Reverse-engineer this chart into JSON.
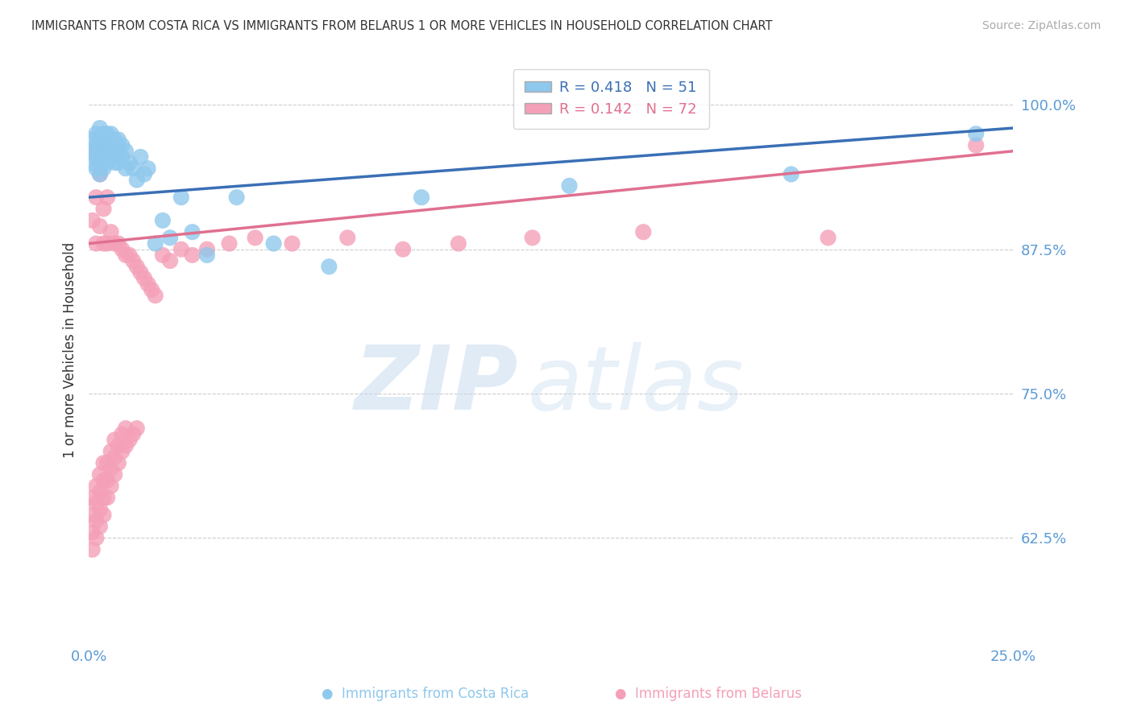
{
  "title": "IMMIGRANTS FROM COSTA RICA VS IMMIGRANTS FROM BELARUS 1 OR MORE VEHICLES IN HOUSEHOLD CORRELATION CHART",
  "source": "Source: ZipAtlas.com",
  "ylabel": "1 or more Vehicles in Household",
  "xlim": [
    0.0,
    0.25
  ],
  "ylim": [
    0.535,
    1.04
  ],
  "yticks": [
    0.625,
    0.75,
    0.875,
    1.0
  ],
  "ytick_labels": [
    "62.5%",
    "75.0%",
    "87.5%",
    "100.0%"
  ],
  "xticks": [
    0.0,
    0.05,
    0.1,
    0.15,
    0.2,
    0.25
  ],
  "xtick_labels": [
    "0.0%",
    "",
    "",
    "",
    "",
    "25.0%"
  ],
  "costa_rica_color": "#8FC8ED",
  "belarus_color": "#F4A0B8",
  "costa_rica_line_color": "#3A6FB5",
  "belarus_line_color": "#E07090",
  "r_costa_rica": 0.418,
  "n_costa_rica": 51,
  "r_belarus": 0.142,
  "n_belarus": 72,
  "costa_rica_x": [
    0.001,
    0.001,
    0.001,
    0.002,
    0.002,
    0.002,
    0.002,
    0.003,
    0.003,
    0.003,
    0.003,
    0.003,
    0.004,
    0.004,
    0.004,
    0.004,
    0.005,
    0.005,
    0.005,
    0.006,
    0.006,
    0.006,
    0.007,
    0.007,
    0.007,
    0.008,
    0.008,
    0.008,
    0.009,
    0.009,
    0.01,
    0.01,
    0.011,
    0.012,
    0.013,
    0.014,
    0.015,
    0.016,
    0.018,
    0.02,
    0.022,
    0.025,
    0.028,
    0.032,
    0.04,
    0.05,
    0.065,
    0.09,
    0.13,
    0.19,
    0.24
  ],
  "costa_rica_y": [
    0.97,
    0.96,
    0.95,
    0.975,
    0.965,
    0.955,
    0.945,
    0.98,
    0.97,
    0.96,
    0.95,
    0.94,
    0.975,
    0.965,
    0.955,
    0.945,
    0.975,
    0.965,
    0.95,
    0.975,
    0.965,
    0.955,
    0.97,
    0.96,
    0.95,
    0.97,
    0.96,
    0.95,
    0.965,
    0.955,
    0.96,
    0.945,
    0.95,
    0.945,
    0.935,
    0.955,
    0.94,
    0.945,
    0.88,
    0.9,
    0.885,
    0.92,
    0.89,
    0.87,
    0.92,
    0.88,
    0.86,
    0.92,
    0.93,
    0.94,
    0.975
  ],
  "belarus_x": [
    0.001,
    0.001,
    0.001,
    0.001,
    0.001,
    0.002,
    0.002,
    0.002,
    0.002,
    0.002,
    0.002,
    0.002,
    0.003,
    0.003,
    0.003,
    0.003,
    0.003,
    0.003,
    0.004,
    0.004,
    0.004,
    0.004,
    0.004,
    0.004,
    0.005,
    0.005,
    0.005,
    0.005,
    0.005,
    0.006,
    0.006,
    0.006,
    0.006,
    0.007,
    0.007,
    0.007,
    0.007,
    0.008,
    0.008,
    0.008,
    0.009,
    0.009,
    0.009,
    0.01,
    0.01,
    0.01,
    0.011,
    0.011,
    0.012,
    0.012,
    0.013,
    0.013,
    0.014,
    0.015,
    0.016,
    0.017,
    0.018,
    0.02,
    0.022,
    0.025,
    0.028,
    0.032,
    0.038,
    0.045,
    0.055,
    0.07,
    0.085,
    0.1,
    0.12,
    0.15,
    0.2,
    0.24
  ],
  "belarus_y": [
    0.615,
    0.63,
    0.645,
    0.66,
    0.9,
    0.625,
    0.64,
    0.655,
    0.67,
    0.88,
    0.92,
    0.96,
    0.635,
    0.65,
    0.665,
    0.68,
    0.895,
    0.94,
    0.645,
    0.66,
    0.675,
    0.69,
    0.88,
    0.91,
    0.66,
    0.675,
    0.69,
    0.88,
    0.92,
    0.67,
    0.685,
    0.7,
    0.89,
    0.68,
    0.695,
    0.71,
    0.88,
    0.69,
    0.705,
    0.88,
    0.7,
    0.715,
    0.875,
    0.705,
    0.72,
    0.87,
    0.71,
    0.87,
    0.715,
    0.865,
    0.72,
    0.86,
    0.855,
    0.85,
    0.845,
    0.84,
    0.835,
    0.87,
    0.865,
    0.875,
    0.87,
    0.875,
    0.88,
    0.885,
    0.88,
    0.885,
    0.875,
    0.88,
    0.885,
    0.89,
    0.885,
    0.965
  ],
  "background_color": "#FFFFFF",
  "grid_color": "#CCCCCC",
  "axis_label_color": "#5B9BD5",
  "title_color": "#333333",
  "watermark_zip": "ZIP",
  "watermark_atlas": "atlas"
}
